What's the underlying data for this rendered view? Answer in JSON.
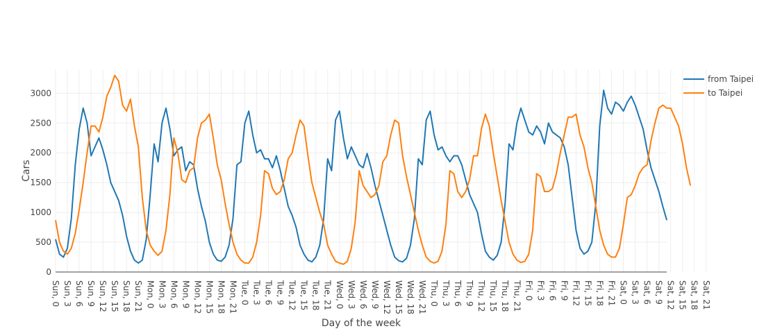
{
  "colors": {
    "from_taipei": "#1f77b4",
    "to_taipei": "#ff7f0e"
  },
  "chart_data": {
    "type": "line",
    "title": "",
    "xlabel": "Day of the week",
    "ylabel": "Cars",
    "ylim": [
      0,
      3400
    ],
    "y_ticks": [
      "0",
      "500",
      "1000",
      "1500",
      "2000",
      "2500",
      "3000"
    ],
    "grid": true,
    "legend_position": "top-right",
    "x_ticks": [
      "Sun, 0",
      "Sun, 3",
      "Sun, 6",
      "Sun, 9",
      "Sun, 12",
      "Sun, 15",
      "Sun, 18",
      "Sun, 21",
      "Mon, 0",
      "Mon, 3",
      "Mon, 6",
      "Mon, 9",
      "Mon, 12",
      "Mon, 15",
      "Mon, 18",
      "Mon, 21",
      "Tue, 0",
      "Tue, 3",
      "Tue, 6",
      "Tue, 9",
      "Tue, 12",
      "Tue, 15",
      "Tue, 18",
      "Tue, 21",
      "Wed, 0",
      "Wed, 3",
      "Wed, 6",
      "Wed, 9",
      "Wed, 12",
      "Wed, 15",
      "Wed, 18",
      "Wed, 21",
      "Thu, 0",
      "Thu, 3",
      "Thu, 6",
      "Thu, 9",
      "Thu, 12",
      "Thu, 15",
      "Thu, 18",
      "Thu, 21",
      "Fri, 0",
      "Fri, 3",
      "Fri, 6",
      "Fri, 9",
      "Fri, 12",
      "Fri, 15",
      "Fri, 18",
      "Fri, 21",
      "Sat, 0",
      "Sat, 3",
      "Sat, 6",
      "Sat, 9",
      "Sat, 12",
      "Sat, 15",
      "Sat, 18",
      "Sat, 21"
    ],
    "series": [
      {
        "name": "from Taipei",
        "values": [
          550,
          300,
          250,
          400,
          900,
          1800,
          2400,
          2750,
          2500,
          1950,
          2100,
          2250,
          2050,
          1800,
          1500,
          1350,
          1200,
          950,
          600,
          350,
          200,
          150,
          200,
          550,
          1300,
          2150,
          1850,
          2500,
          2750,
          2400,
          1950,
          2050,
          2100,
          1700,
          1850,
          1800,
          1400,
          1100,
          850,
          500,
          300,
          200,
          180,
          250,
          450,
          900,
          1800,
          1850,
          2500,
          2700,
          2300,
          2000,
          2050,
          1900,
          1900,
          1750,
          1950,
          1700,
          1400,
          1100,
          950,
          750,
          450,
          300,
          200,
          170,
          250,
          450,
          900,
          1900,
          1700,
          2550,
          2700,
          2250,
          1900,
          2100,
          1950,
          1800,
          1750,
          1990,
          1750,
          1450,
          1200,
          950,
          700,
          450,
          250,
          190,
          170,
          230,
          450,
          900,
          1900,
          1800,
          2550,
          2700,
          2300,
          2050,
          2100,
          1950,
          1850,
          1950,
          1950,
          1800,
          1550,
          1300,
          1150,
          1000,
          650,
          350,
          250,
          200,
          280,
          500,
          1150,
          2150,
          2050,
          2500,
          2750,
          2550,
          2350,
          2300,
          2450,
          2350,
          2150,
          2500,
          2350,
          2300,
          2250,
          2100,
          1800,
          1250,
          700,
          400,
          300,
          350,
          500,
          1150,
          2450,
          3050,
          2750,
          2650,
          2850,
          2800,
          2700,
          2850,
          2950,
          2800,
          2600,
          2400,
          2050,
          1750,
          1550,
          1350,
          1100,
          870
        ]
      },
      {
        "name": "to Taipei",
        "values": [
          870,
          500,
          350,
          300,
          400,
          650,
          1050,
          1500,
          2000,
          2450,
          2450,
          2350,
          2600,
          2950,
          3100,
          3300,
          3200,
          2800,
          2700,
          2900,
          2450,
          2100,
          1250,
          700,
          450,
          350,
          280,
          350,
          700,
          1300,
          2250,
          2000,
          1550,
          1500,
          1700,
          1750,
          2250,
          2500,
          2550,
          2650,
          2250,
          1800,
          1550,
          1150,
          800,
          500,
          300,
          200,
          150,
          150,
          250,
          500,
          950,
          1700,
          1650,
          1400,
          1300,
          1350,
          1550,
          1900,
          2000,
          2300,
          2550,
          2450,
          1950,
          1500,
          1250,
          1000,
          800,
          450,
          300,
          180,
          150,
          130,
          180,
          400,
          850,
          1700,
          1450,
          1350,
          1250,
          1300,
          1450,
          1850,
          1950,
          2300,
          2550,
          2500,
          1950,
          1600,
          1300,
          1000,
          700,
          450,
          250,
          180,
          150,
          180,
          350,
          800,
          1700,
          1650,
          1350,
          1250,
          1350,
          1550,
          1950,
          1950,
          2400,
          2650,
          2450,
          2000,
          1600,
          1200,
          850,
          500,
          300,
          200,
          160,
          180,
          300,
          700,
          1650,
          1600,
          1350,
          1350,
          1400,
          1650,
          2000,
          2300,
          2600,
          2600,
          2650,
          2300,
          2100,
          1750,
          1500,
          1100,
          700,
          450,
          300,
          250,
          250,
          400,
          800,
          1250,
          1300,
          1450,
          1650,
          1750,
          1800,
          2200,
          2500,
          2750,
          2800,
          2750,
          2750,
          2600,
          2450,
          2150,
          1750,
          1450
        ]
      }
    ]
  }
}
